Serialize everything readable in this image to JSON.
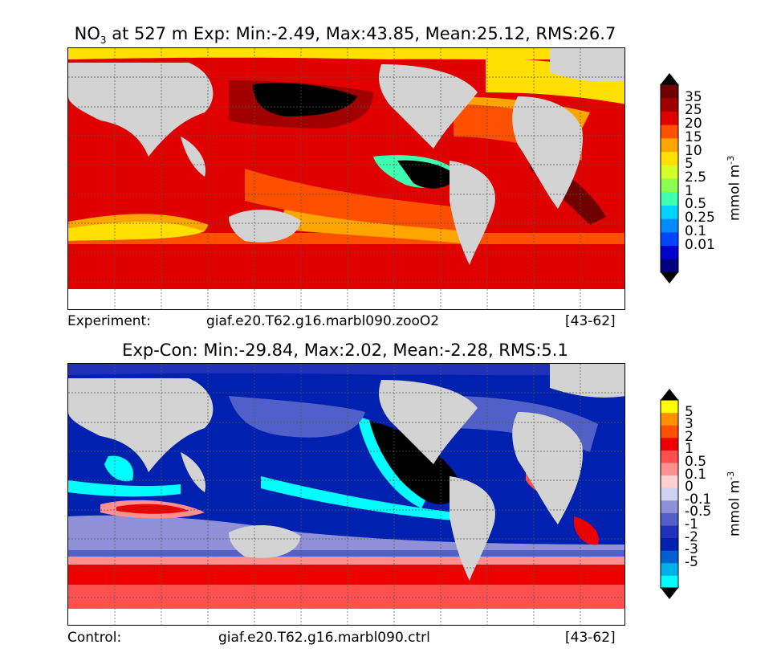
{
  "top_panel": {
    "title_prefix": "NO",
    "title_sub": "3",
    "title_rest": " at 527 m Exp: Min:-2.49, Max:43.85, Mean:25.12, RMS:26.7",
    "caption_left": "Experiment:",
    "caption_case": "giaf.e20.T62.g16.marbl090.zooO2",
    "caption_years": "[43-62]",
    "colorbar": {
      "unit_base": "mmol m",
      "unit_exp": "-3",
      "ticks": [
        "35",
        "25",
        "20",
        "15",
        "10",
        "5",
        "2.5",
        "1",
        "0.5",
        "0.25",
        "0.1",
        "0.01"
      ],
      "colors": [
        "#000080",
        "#0000cd",
        "#0044ff",
        "#008cff",
        "#00d4ff",
        "#3fffb0",
        "#8cff50",
        "#d4ff28",
        "#ffe000",
        "#ffa500",
        "#ff5000",
        "#e00000",
        "#a00000",
        "#700000"
      ],
      "extend_low_color": "#000000",
      "extend_high_color": "#000000"
    }
  },
  "bottom_panel": {
    "title": "Exp-Con: Min:-29.84, Max:2.02, Mean:-2.28, RMS:5.1",
    "caption_left": "Control:",
    "caption_case": "giaf.e20.T62.g16.marbl090.ctrl",
    "caption_years": "[43-62]",
    "colorbar": {
      "unit_base": "mmol m",
      "unit_exp": "-3",
      "ticks": [
        "5",
        "3",
        "2",
        "1",
        "0.5",
        "0.1",
        "0",
        "-0.1",
        "-0.5",
        "-1",
        "-2",
        "-3",
        "-5"
      ],
      "colors": [
        "#00ffff",
        "#00b0e8",
        "#0060d0",
        "#0020b0",
        "#2030b8",
        "#5060c8",
        "#9090d8",
        "#d0d0f0",
        "#ffd0d0",
        "#ff9090",
        "#ff5050",
        "#ee0000",
        "#ff5000",
        "#ff9000",
        "#ffff00"
      ],
      "extend_low_color": "#000000",
      "extend_high_color": "#000000"
    }
  },
  "map_colors": {
    "land": "#d3d3d3",
    "ice": "#ffffff",
    "grid": "#555555"
  }
}
